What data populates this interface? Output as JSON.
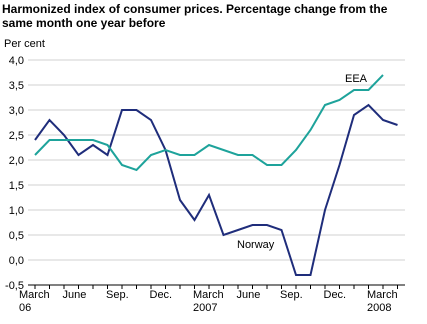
{
  "chart_data": {
    "type": "line",
    "title": "Harmonized index of consumer prices. Percentage change from the same month one year before",
    "y_label": "Per cent",
    "categories": [
      "March 06",
      null,
      null,
      "June",
      null,
      null,
      "Sep.",
      null,
      null,
      "Dec.",
      null,
      null,
      "March 2007",
      null,
      null,
      "June",
      null,
      null,
      "Sep.",
      null,
      null,
      "Dec.",
      null,
      null,
      "March 2008",
      null
    ],
    "series": [
      {
        "name": "Norway",
        "color": "#1f2d7b",
        "values": [
          2.4,
          2.8,
          2.5,
          2.1,
          2.3,
          2.1,
          3.0,
          3.0,
          2.8,
          2.2,
          1.2,
          0.8,
          1.3,
          0.5,
          0.6,
          0.7,
          0.7,
          0.6,
          -0.3,
          -0.3,
          1.0,
          1.9,
          2.9,
          3.1,
          2.8,
          2.7
        ]
      },
      {
        "name": "EEA",
        "color": "#1ea39b",
        "values": [
          2.1,
          2.4,
          2.4,
          2.4,
          2.4,
          2.3,
          1.9,
          1.8,
          2.1,
          2.2,
          2.1,
          2.1,
          2.3,
          2.2,
          2.1,
          2.1,
          1.9,
          1.9,
          2.2,
          2.6,
          3.1,
          3.2,
          3.4,
          3.4,
          3.7,
          null
        ]
      }
    ],
    "ylim": [
      -0.5,
      4.0
    ],
    "yticks": [
      {
        "value": -0.5,
        "label": "-0,5"
      },
      {
        "value": 0,
        "label": "0,0"
      },
      {
        "value": 0.5,
        "label": "0,5"
      },
      {
        "value": 1,
        "label": "1,0"
      },
      {
        "value": 1.5,
        "label": "1,5"
      },
      {
        "value": 2,
        "label": "2,0"
      },
      {
        "value": 2.5,
        "label": "2,5"
      },
      {
        "value": 3,
        "label": "3,0"
      },
      {
        "value": 3.5,
        "label": "3,5"
      },
      {
        "value": 4,
        "label": "4,0"
      }
    ],
    "grid": true
  }
}
